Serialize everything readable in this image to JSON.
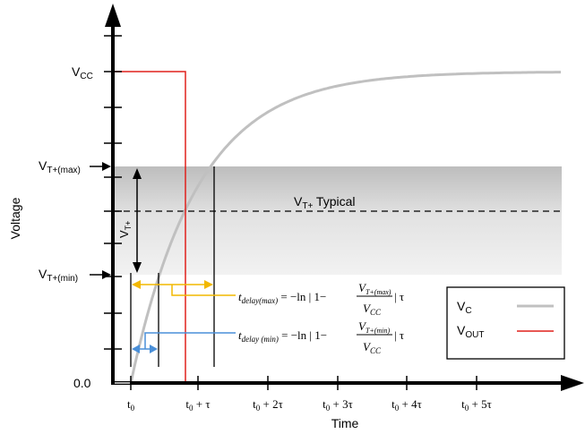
{
  "axes": {
    "y_label": "Voltage",
    "x_label": "Time",
    "origin_label": "0.0",
    "vcc": {
      "main": "V",
      "sub": "CC"
    },
    "vt_max": {
      "main": "V",
      "sub": "T+(max)"
    },
    "vt_min": {
      "main": "V",
      "sub": "T+(min)"
    },
    "x_ticks": [
      {
        "base": "t",
        "sub": "0",
        "rest": ""
      },
      {
        "base": "t",
        "sub": "0",
        "rest": " + τ"
      },
      {
        "base": "t",
        "sub": "0",
        "rest": " + 2τ"
      },
      {
        "base": "t",
        "sub": "0",
        "rest": " + 3τ"
      },
      {
        "base": "t",
        "sub": "0",
        "rest": " + 4τ"
      },
      {
        "base": "t",
        "sub": "0",
        "rest": " + 5τ"
      }
    ]
  },
  "annotations": {
    "typical": {
      "main": "V",
      "sub": "T+",
      "rest": " Typical"
    },
    "vt_plus_span": {
      "main": "V",
      "sub": "T+"
    },
    "delay_max": {
      "lhs_t": "t",
      "lhs_sub": "delay(max)",
      "mid": " = −ln | 1−",
      "num_main": "V",
      "num_sub": "T+(max)",
      "den_main": "V",
      "den_sub": "CC",
      "tail": " | τ"
    },
    "delay_min": {
      "lhs_t": "t",
      "lhs_sub": "delay (min)",
      "mid": " = −ln | 1−",
      "num_main": "V",
      "num_sub": "T+(min)",
      "den_main": "V",
      "den_sub": "CC",
      "tail": " | τ"
    }
  },
  "legend": {
    "items": [
      {
        "main": "V",
        "sub": "C",
        "color": "#c0c0c0"
      },
      {
        "main": "V",
        "sub": "OUT",
        "color": "#e0201c"
      }
    ]
  },
  "colors": {
    "vc_curve": "#c0c0c0",
    "vout": "#e0201c",
    "threshold_band": "#dcdcdc",
    "delay_max_arrow": "#f2b800",
    "delay_min_arrow": "#4a8fd8",
    "axis": "#000000"
  }
}
